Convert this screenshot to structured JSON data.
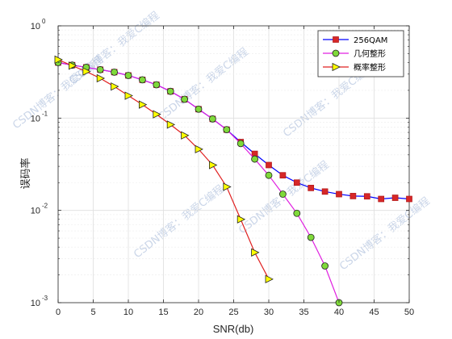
{
  "chart_data": {
    "type": "line",
    "xlabel": "SNR(db)",
    "ylabel": "误码率",
    "xlim": [
      0,
      50
    ],
    "ylim": [
      0.001,
      1
    ],
    "yscale": "log",
    "xticks": [
      0,
      5,
      10,
      15,
      20,
      25,
      30,
      35,
      40,
      45,
      50
    ],
    "ytick_labels": [
      {
        "value": 1,
        "exp": "0"
      },
      {
        "value": 0.1,
        "exp": "-1"
      },
      {
        "value": 0.01,
        "exp": "-2"
      },
      {
        "value": 0.001,
        "exp": "-3"
      }
    ],
    "grid": true,
    "legend": "top-right",
    "series": [
      {
        "name": "256QAM",
        "color": "#0000ff",
        "marker": "square",
        "marker_color": "#d62728",
        "x": [
          0,
          2,
          4,
          6,
          8,
          10,
          12,
          14,
          16,
          18,
          20,
          22,
          24,
          26,
          28,
          30,
          32,
          34,
          36,
          38,
          40,
          42,
          44,
          46,
          48,
          50
        ],
        "y": [
          0.4,
          0.375,
          0.355,
          0.335,
          0.315,
          0.29,
          0.26,
          0.23,
          0.195,
          0.16,
          0.125,
          0.098,
          0.075,
          0.055,
          0.041,
          0.031,
          0.024,
          0.02,
          0.0175,
          0.016,
          0.015,
          0.0143,
          0.0142,
          0.0133,
          0.0137,
          0.0133
        ]
      },
      {
        "name": "几何整形",
        "color": "#e020e0",
        "marker": "circle",
        "marker_color": "#7fd93a",
        "x": [
          0,
          2,
          4,
          6,
          8,
          10,
          12,
          14,
          16,
          18,
          20,
          22,
          24,
          26,
          28,
          30,
          32,
          34,
          36,
          38,
          40
        ],
        "y": [
          0.4,
          0.375,
          0.355,
          0.335,
          0.315,
          0.29,
          0.26,
          0.23,
          0.195,
          0.16,
          0.125,
          0.098,
          0.075,
          0.053,
          0.036,
          0.024,
          0.015,
          0.0093,
          0.0051,
          0.0025,
          0.001
        ]
      },
      {
        "name": "概率整形",
        "color": "#e02020",
        "marker": "triangle-right",
        "marker_color": "#ffff00",
        "x": [
          0,
          2,
          4,
          6,
          8,
          10,
          12,
          14,
          16,
          18,
          20,
          22,
          24,
          26,
          28,
          30
        ],
        "y": [
          0.43,
          0.37,
          0.32,
          0.27,
          0.22,
          0.175,
          0.14,
          0.11,
          0.085,
          0.065,
          0.046,
          0.031,
          0.018,
          0.008,
          0.0035,
          0.0018
        ]
      }
    ]
  },
  "watermark": {
    "text": "CSDN博客：我爱C编程",
    "color": "#9fb4d6"
  }
}
